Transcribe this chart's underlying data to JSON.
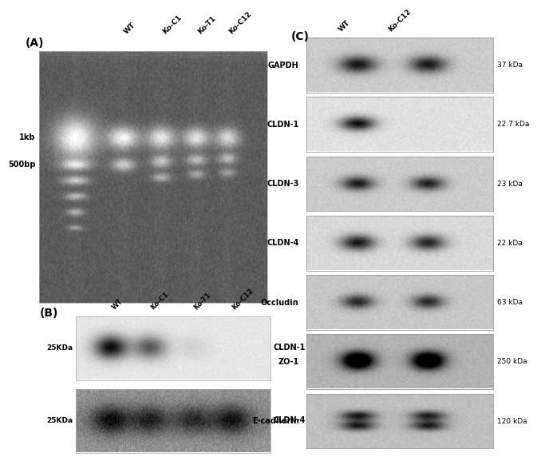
{
  "panel_A_label": "(A)",
  "panel_B_label": "(B)",
  "panel_C_label": "(C)",
  "panel_A_lane_labels": [
    "WT",
    "Ko-C1",
    "Ko-T1",
    "Ko-C12"
  ],
  "panel_B_lane_labels": [
    "WT",
    "Ko-C1",
    "Ko-T1",
    "Ko-C12"
  ],
  "panel_C_lane_labels": [
    "WT",
    "Ko-C12"
  ],
  "panel_A_size_labels": [
    "1kb",
    "500bp"
  ],
  "panel_B_blots": [
    "CLDN-1",
    "CLDN-4"
  ],
  "panel_B_size_label": "25KDa",
  "panel_C_blots": [
    {
      "name": "GAPDH",
      "size": "37 kDa"
    },
    {
      "name": "CLDN-1",
      "size": "22.7 kDa"
    },
    {
      "name": "CLDN-3",
      "size": "23 kDa"
    },
    {
      "name": "CLDN-4",
      "size": "22 kDa"
    },
    {
      "name": "Occludin",
      "size": "63 kDa"
    },
    {
      "name": "ZO-1",
      "size": "250 kDa"
    },
    {
      "name": "E-cadherin",
      "size": "120 kDa"
    }
  ],
  "bg_color": "#ffffff"
}
